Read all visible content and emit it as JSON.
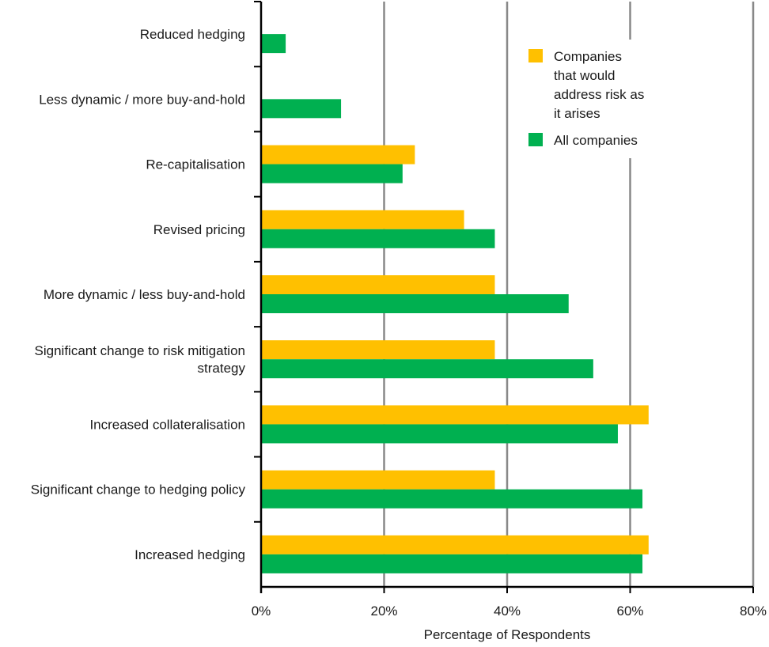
{
  "chart_data": {
    "type": "bar",
    "orientation": "horizontal",
    "title": "",
    "xlabel": "Percentage of Respondents",
    "ylabel": "",
    "xlim": [
      0,
      80
    ],
    "xticks": [
      0,
      20,
      40,
      60,
      80
    ],
    "xtick_labels": [
      "0%",
      "20%",
      "40%",
      "60%",
      "80%"
    ],
    "grid": "vertical",
    "legend_position": "top-right",
    "categories": [
      [
        "Reduced hedging"
      ],
      [
        "Less dynamic / more buy-and-hold"
      ],
      [
        "Re-capitalisation"
      ],
      [
        "Revised pricing"
      ],
      [
        "More dynamic / less buy-and-hold"
      ],
      [
        "Significant change to risk mitigation",
        "strategy"
      ],
      [
        "Increased collateralisation"
      ],
      [
        "Significant change to hedging policy"
      ],
      [
        "Increased hedging"
      ]
    ],
    "series": [
      {
        "name": [
          "Companies",
          "that would",
          "address risk as",
          "it arises"
        ],
        "color": "#FFC000",
        "values": [
          0,
          0,
          25,
          33,
          38,
          38,
          63,
          38,
          63
        ]
      },
      {
        "name": [
          "All companies"
        ],
        "color": "#00B050",
        "values": [
          4,
          13,
          23,
          38,
          50,
          54,
          58,
          62,
          62
        ]
      }
    ]
  }
}
